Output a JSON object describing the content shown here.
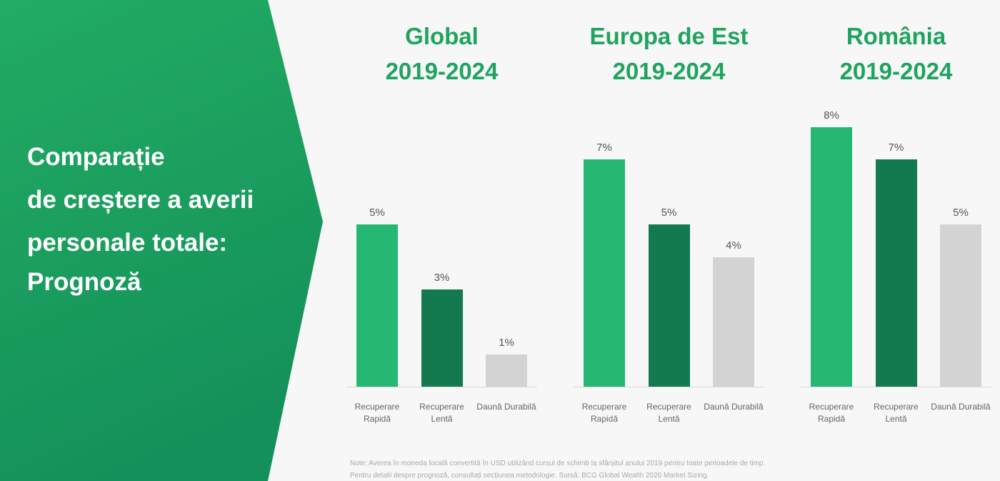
{
  "heading": [
    "Comparație",
    "de creștere a averii",
    "personale totale:",
    "Prognoză"
  ],
  "chart_data": [
    {
      "type": "bar",
      "title": "Global",
      "subtitle": "2019-2024",
      "categories": [
        "Recuperare Rapidă",
        "Recuperare Lentă",
        "Daună Durabilă"
      ],
      "values": [
        5,
        3,
        1
      ],
      "value_labels": [
        "5%",
        "3%",
        "1%"
      ],
      "colors": [
        "#25b872",
        "#127a4e",
        "#d3d3d3"
      ]
    },
    {
      "type": "bar",
      "title": "Europa de Est",
      "subtitle": "2019-2024",
      "categories": [
        "Recuperare Rapidă",
        "Recuperare Lentă",
        "Daună Durabilă"
      ],
      "values": [
        7,
        5,
        4
      ],
      "value_labels": [
        "7%",
        "5%",
        "4%"
      ],
      "colors": [
        "#25b872",
        "#127a4e",
        "#d3d3d3"
      ]
    },
    {
      "type": "bar",
      "title": "România",
      "subtitle": "2019-2024",
      "categories": [
        "Recuperare Rapidă",
        "Recuperare Lentă",
        "Daună Durabilă"
      ],
      "values": [
        8,
        7,
        5
      ],
      "value_labels": [
        "8%",
        "7%",
        "5%"
      ],
      "colors": [
        "#25b872",
        "#127a4e",
        "#d3d3d3"
      ]
    }
  ],
  "note": [
    "Note: Averea în moneda locală convertită în USD utilizând cursul de schimb la sfârșitul anului 2019 pentru toate perioadele de timp.",
    "Pentru detalii despre prognoză, consultați secțiunea metodologie. Sursă: BCG Global Wealth 2020 Market Sizing."
  ]
}
